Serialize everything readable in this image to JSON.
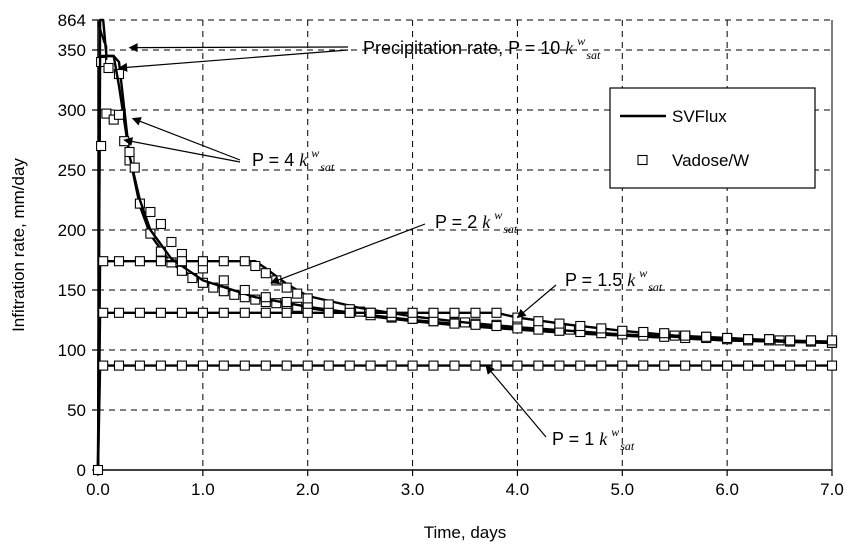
{
  "chart_data": {
    "type": "line",
    "title": "",
    "xlabel": "Time, days",
    "ylabel": "Infitration rate, mm/day",
    "xlim": [
      0,
      7
    ],
    "ylim": [
      0,
      375
    ],
    "break_top_label": "864",
    "x_ticks": [
      "0.0",
      "1.0",
      "2.0",
      "3.0",
      "4.0",
      "5.0",
      "6.0",
      "7.0"
    ],
    "y_ticks": [
      "0",
      "50",
      "100",
      "150",
      "200",
      "250",
      "300",
      "350"
    ],
    "grid": "dashed",
    "legend": {
      "placement": "top-right",
      "entries": [
        {
          "label": "SVFlux",
          "style": "line"
        },
        {
          "label": "Vadose/W",
          "style": "open-square"
        }
      ]
    },
    "series": [
      {
        "case": "P = 10 k_sat",
        "svflux": [
          [
            0,
            0
          ],
          [
            0.02,
            864
          ],
          [
            0.04,
            864
          ],
          [
            0.05,
            864
          ],
          [
            0.08,
            345
          ],
          [
            0.1,
            345
          ],
          [
            0.15,
            345
          ],
          [
            0.2,
            340
          ],
          [
            0.3,
            262
          ],
          [
            0.4,
            220
          ],
          [
            0.5,
            196
          ],
          [
            0.7,
            172
          ],
          [
            1,
            156
          ],
          [
            1.5,
            143
          ],
          [
            2,
            135
          ],
          [
            2.5,
            129
          ],
          [
            3,
            124
          ],
          [
            3.5,
            120
          ],
          [
            4,
            117
          ],
          [
            4.5,
            114
          ],
          [
            5,
            112
          ],
          [
            5.5,
            110
          ],
          [
            6,
            108
          ],
          [
            6.5,
            107
          ],
          [
            7,
            106
          ]
        ],
        "vadose": [
          [
            0.03,
            340
          ],
          [
            0.1,
            335
          ],
          [
            0.2,
            330
          ],
          [
            0.3,
            258
          ],
          [
            0.4,
            222
          ],
          [
            0.5,
            197
          ],
          [
            0.6,
            182
          ],
          [
            0.7,
            173
          ],
          [
            0.8,
            166
          ],
          [
            0.9,
            160
          ],
          [
            1,
            156
          ],
          [
            1.1,
            152
          ],
          [
            1.2,
            149
          ],
          [
            1.3,
            146
          ],
          [
            1.4,
            144
          ],
          [
            1.5,
            142
          ],
          [
            1.6,
            140
          ],
          [
            1.7,
            139
          ],
          [
            1.8,
            137
          ],
          [
            1.9,
            136
          ],
          [
            2,
            135
          ],
          [
            2.2,
            133
          ],
          [
            2.4,
            131
          ],
          [
            2.6,
            129
          ],
          [
            2.8,
            127
          ],
          [
            3,
            126
          ],
          [
            3.2,
            124
          ],
          [
            3.4,
            123
          ],
          [
            3.6,
            122
          ],
          [
            3.8,
            121
          ],
          [
            4,
            120
          ],
          [
            4.2,
            119
          ],
          [
            4.4,
            118
          ],
          [
            4.6,
            117
          ],
          [
            4.8,
            116
          ],
          [
            5,
            115
          ],
          [
            5.2,
            114
          ],
          [
            5.4,
            113
          ],
          [
            5.6,
            112
          ],
          [
            5.8,
            111
          ],
          [
            6,
            110
          ],
          [
            6.2,
            109
          ],
          [
            6.4,
            109
          ],
          [
            6.6,
            108
          ],
          [
            6.8,
            108
          ],
          [
            7,
            107
          ]
        ]
      },
      {
        "case": "P = 4 k_sat",
        "svflux": [
          [
            0,
            0
          ],
          [
            0.02,
            345
          ],
          [
            0.15,
            345
          ],
          [
            0.2,
            320
          ],
          [
            0.3,
            262
          ],
          [
            0.4,
            225
          ],
          [
            0.5,
            200
          ],
          [
            0.7,
            176
          ],
          [
            1,
            158
          ],
          [
            1.5,
            144
          ],
          [
            2,
            136
          ],
          [
            2.5,
            130
          ],
          [
            3,
            125
          ],
          [
            3.5,
            121
          ],
          [
            4,
            118
          ],
          [
            4.5,
            115
          ],
          [
            5,
            112
          ],
          [
            5.5,
            110
          ],
          [
            6,
            108
          ],
          [
            6.5,
            107
          ],
          [
            7,
            106
          ]
        ],
        "vadose": [
          [
            0.03,
            270
          ],
          [
            0.08,
            297
          ],
          [
            0.15,
            292
          ],
          [
            0.2,
            296
          ],
          [
            0.25,
            274
          ],
          [
            0.3,
            265
          ],
          [
            0.35,
            252
          ],
          [
            0.5,
            215
          ],
          [
            0.6,
            205
          ],
          [
            0.7,
            190
          ],
          [
            0.8,
            180
          ],
          [
            1,
            168
          ],
          [
            1.2,
            158
          ],
          [
            1.4,
            150
          ],
          [
            1.6,
            144
          ],
          [
            1.8,
            140
          ],
          [
            2,
            138
          ],
          [
            2.5,
            132
          ],
          [
            3,
            127
          ],
          [
            3.5,
            123
          ],
          [
            4,
            120
          ],
          [
            4.5,
            117
          ],
          [
            5,
            114
          ],
          [
            5.5,
            112
          ],
          [
            6,
            110
          ],
          [
            6.5,
            108
          ],
          [
            7,
            106
          ]
        ]
      },
      {
        "case": "P = 2 k_sat",
        "svflux": [
          [
            0,
            0
          ],
          [
            0.02,
            174
          ],
          [
            1.5,
            174
          ],
          [
            1.6,
            168
          ],
          [
            1.8,
            155
          ],
          [
            2,
            145
          ],
          [
            2.5,
            135
          ],
          [
            3,
            128
          ],
          [
            3.5,
            123
          ],
          [
            4,
            119
          ],
          [
            4.5,
            116
          ],
          [
            5,
            113
          ],
          [
            5.5,
            111
          ],
          [
            6,
            109
          ],
          [
            6.5,
            107
          ],
          [
            7,
            106
          ]
        ],
        "vadose": [
          [
            0.05,
            174
          ],
          [
            0.2,
            174
          ],
          [
            0.4,
            174
          ],
          [
            0.6,
            174
          ],
          [
            0.8,
            174
          ],
          [
            1,
            174
          ],
          [
            1.2,
            174
          ],
          [
            1.4,
            174
          ],
          [
            1.5,
            170
          ],
          [
            1.6,
            164
          ],
          [
            1.7,
            158
          ],
          [
            1.8,
            152
          ],
          [
            1.9,
            147
          ],
          [
            2,
            143
          ],
          [
            2.2,
            138
          ],
          [
            2.4,
            134
          ],
          [
            2.6,
            131
          ],
          [
            2.8,
            128
          ],
          [
            3,
            126
          ],
          [
            3.2,
            124
          ],
          [
            3.4,
            122
          ],
          [
            3.6,
            121
          ],
          [
            3.8,
            120
          ],
          [
            4,
            118
          ],
          [
            4.2,
            117
          ],
          [
            4.4,
            116
          ],
          [
            4.6,
            115
          ],
          [
            4.8,
            114
          ],
          [
            5,
            113
          ],
          [
            5.2,
            112
          ],
          [
            5.4,
            111
          ],
          [
            5.6,
            110
          ],
          [
            5.8,
            110
          ],
          [
            6,
            109
          ],
          [
            6.2,
            108
          ],
          [
            6.4,
            108
          ],
          [
            6.6,
            107
          ],
          [
            6.8,
            107
          ],
          [
            7,
            106
          ]
        ]
      },
      {
        "case": "P = 1.5 k_sat",
        "svflux": [
          [
            0,
            0
          ],
          [
            0.02,
            131
          ],
          [
            3.8,
            131
          ],
          [
            4,
            127
          ],
          [
            4.5,
            121
          ],
          [
            5,
            116
          ],
          [
            5.5,
            112
          ],
          [
            6,
            110
          ],
          [
            6.5,
            108
          ],
          [
            7,
            107
          ]
        ],
        "vadose": [
          [
            0.05,
            131
          ],
          [
            0.2,
            131
          ],
          [
            0.4,
            131
          ],
          [
            0.6,
            131
          ],
          [
            0.8,
            131
          ],
          [
            1,
            131
          ],
          [
            1.2,
            131
          ],
          [
            1.4,
            131
          ],
          [
            1.6,
            131
          ],
          [
            1.8,
            131
          ],
          [
            2,
            131
          ],
          [
            2.2,
            131
          ],
          [
            2.4,
            131
          ],
          [
            2.6,
            131
          ],
          [
            2.8,
            131
          ],
          [
            3,
            131
          ],
          [
            3.2,
            131
          ],
          [
            3.4,
            131
          ],
          [
            3.6,
            131
          ],
          [
            3.8,
            131
          ],
          [
            4,
            127
          ],
          [
            4.2,
            124
          ],
          [
            4.4,
            122
          ],
          [
            4.6,
            120
          ],
          [
            4.8,
            118
          ],
          [
            5,
            116
          ],
          [
            5.2,
            115
          ],
          [
            5.4,
            114
          ],
          [
            5.6,
            112
          ],
          [
            5.8,
            111
          ],
          [
            6,
            110
          ],
          [
            6.2,
            109
          ],
          [
            6.4,
            109
          ],
          [
            6.6,
            108
          ],
          [
            6.8,
            108
          ],
          [
            7,
            108
          ]
        ]
      },
      {
        "case": "P = 1 k_sat",
        "svflux": [
          [
            0,
            0
          ],
          [
            0.02,
            87
          ],
          [
            7,
            87
          ]
        ],
        "vadose": [
          [
            0.05,
            87
          ],
          [
            0.2,
            87
          ],
          [
            0.4,
            87
          ],
          [
            0.6,
            87
          ],
          [
            0.8,
            87
          ],
          [
            1,
            87
          ],
          [
            1.2,
            87
          ],
          [
            1.4,
            87
          ],
          [
            1.6,
            87
          ],
          [
            1.8,
            87
          ],
          [
            2,
            87
          ],
          [
            2.2,
            87
          ],
          [
            2.4,
            87
          ],
          [
            2.6,
            87
          ],
          [
            2.8,
            87
          ],
          [
            3,
            87
          ],
          [
            3.2,
            87
          ],
          [
            3.4,
            87
          ],
          [
            3.6,
            87
          ],
          [
            3.8,
            87
          ],
          [
            4,
            87
          ],
          [
            4.2,
            87
          ],
          [
            4.4,
            87
          ],
          [
            4.6,
            87
          ],
          [
            4.8,
            87
          ],
          [
            5,
            87
          ],
          [
            5.2,
            87
          ],
          [
            5.4,
            87
          ],
          [
            5.6,
            87
          ],
          [
            5.8,
            87
          ],
          [
            6,
            87
          ],
          [
            6.2,
            87
          ],
          [
            6.4,
            87
          ],
          [
            6.6,
            87
          ],
          [
            6.8,
            87
          ],
          [
            7,
            87
          ]
        ]
      }
    ],
    "origin_marker": [
      0,
      0
    ],
    "annotations": [
      {
        "prefix": "Precipitation rate, P = 10 ",
        "k": "k",
        "sup": "w",
        "sub": "sat",
        "arrow_targets": [
          [
            0.3,
            352
          ],
          [
            0.2,
            335
          ]
        ]
      },
      {
        "prefix": "P = 4 ",
        "k": "k",
        "sup": "w",
        "sub": "sat",
        "arrow_targets": [
          [
            0.33,
            293
          ],
          [
            0.25,
            275
          ]
        ]
      },
      {
        "prefix": "P = 2 ",
        "k": "k",
        "sup": "w",
        "sub": "sat",
        "arrow_targets": [
          [
            1.65,
            156
          ]
        ]
      },
      {
        "prefix": "P = 1.5 ",
        "k": "k",
        "sup": "w",
        "sub": "sat",
        "arrow_targets": [
          [
            4.0,
            127
          ]
        ]
      },
      {
        "prefix": "P = 1 ",
        "k": "k",
        "sup": "w",
        "sub": "sat",
        "arrow_targets": [
          [
            3.7,
            87
          ]
        ]
      }
    ]
  }
}
